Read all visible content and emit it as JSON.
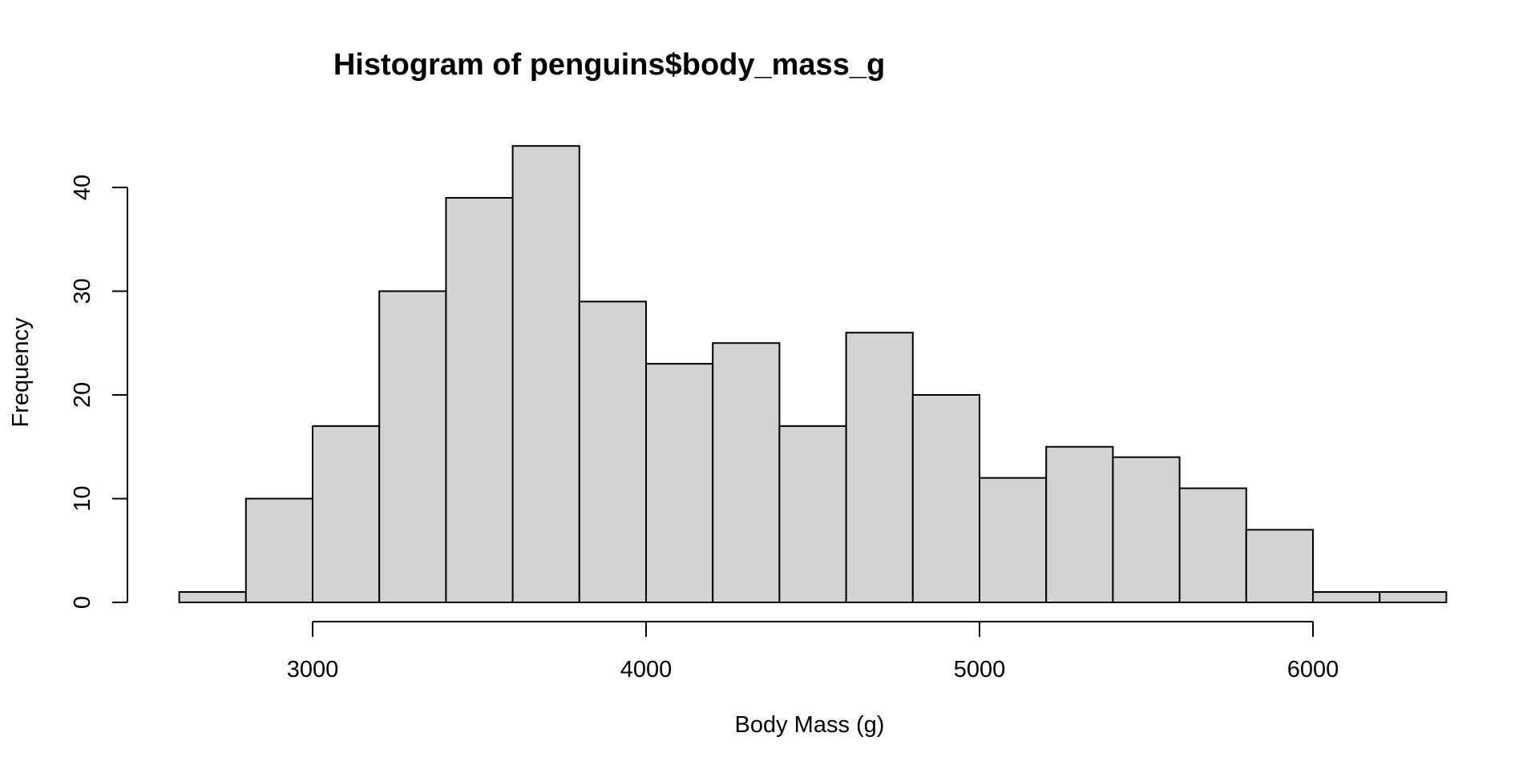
{
  "chart_data": {
    "type": "bar",
    "subtype": "histogram",
    "title": "Histogram of penguins$body_mass_g",
    "xlabel": "Body Mass (g)",
    "ylabel": "Frequency",
    "bin_width": 200,
    "bins": [
      {
        "start": 2600,
        "end": 2800,
        "count": 1
      },
      {
        "start": 2800,
        "end": 3000,
        "count": 10
      },
      {
        "start": 3000,
        "end": 3200,
        "count": 17
      },
      {
        "start": 3200,
        "end": 3400,
        "count": 30
      },
      {
        "start": 3400,
        "end": 3600,
        "count": 39
      },
      {
        "start": 3600,
        "end": 3800,
        "count": 44
      },
      {
        "start": 3800,
        "end": 4000,
        "count": 29
      },
      {
        "start": 4000,
        "end": 4200,
        "count": 23
      },
      {
        "start": 4200,
        "end": 4400,
        "count": 25
      },
      {
        "start": 4400,
        "end": 4600,
        "count": 17
      },
      {
        "start": 4600,
        "end": 4800,
        "count": 26
      },
      {
        "start": 4800,
        "end": 5000,
        "count": 20
      },
      {
        "start": 5000,
        "end": 5200,
        "count": 12
      },
      {
        "start": 5200,
        "end": 5400,
        "count": 15
      },
      {
        "start": 5400,
        "end": 5600,
        "count": 14
      },
      {
        "start": 5600,
        "end": 5800,
        "count": 11
      },
      {
        "start": 5800,
        "end": 6000,
        "count": 7
      },
      {
        "start": 6000,
        "end": 6200,
        "count": 1
      },
      {
        "start": 6200,
        "end": 6400,
        "count": 1
      }
    ],
    "xlim": [
      2600,
      6400
    ],
    "ylim": [
      0,
      44
    ],
    "x_ticks": [
      3000,
      4000,
      5000,
      6000
    ],
    "x_tick_labels": [
      "3000",
      "4000",
      "5000",
      "6000"
    ],
    "y_ticks": [
      0,
      10,
      20,
      30,
      40
    ],
    "y_tick_labels": [
      "0",
      "10",
      "20",
      "30",
      "40"
    ],
    "grid": false,
    "colors": {
      "bar_fill": "#d3d3d3",
      "bar_stroke": "#000000",
      "background": "#ffffff"
    }
  }
}
